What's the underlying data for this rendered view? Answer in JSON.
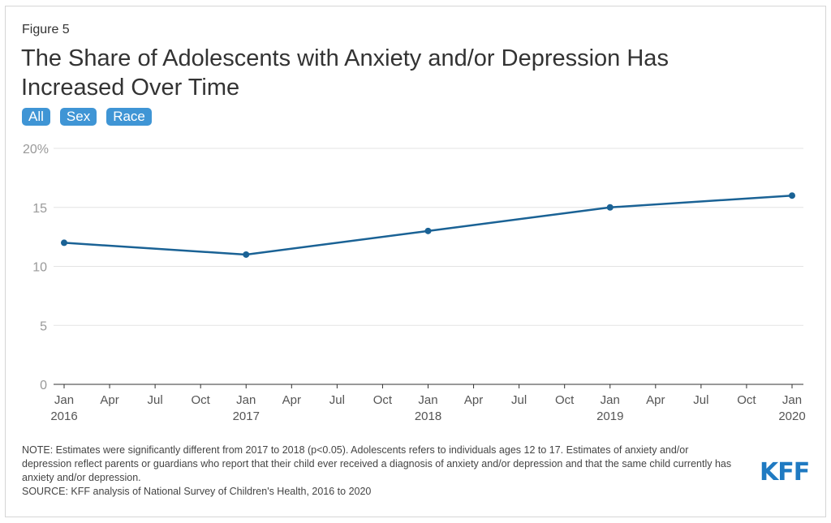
{
  "figure_label": "Figure 5",
  "title": "The Share of Adolescents with Anxiety and/or Depression Has Increased Over Time",
  "buttons": [
    "All",
    "Sex",
    "Race"
  ],
  "chart_data": {
    "type": "line",
    "title": "The Share of Adolescents with Anxiety and/or Depression Has Increased Over Time",
    "x": [
      2016,
      2017,
      2018,
      2019,
      2020
    ],
    "series": [
      {
        "name": "All",
        "values": [
          12,
          11,
          13,
          15,
          16
        ],
        "color": "#1a6295"
      }
    ],
    "ylim": [
      0,
      20
    ],
    "y_ticks": [
      "0",
      "5",
      "10",
      "15",
      "20%"
    ],
    "y_tick_values": [
      0,
      5,
      10,
      15,
      20
    ],
    "x_ticks": [
      [
        "Jan",
        "2016"
      ],
      [
        "Apr",
        ""
      ],
      [
        "Jul",
        ""
      ],
      [
        "Oct",
        ""
      ],
      [
        "Jan",
        "2017"
      ],
      [
        "Apr",
        ""
      ],
      [
        "Jul",
        ""
      ],
      [
        "Oct",
        ""
      ],
      [
        "Jan",
        "2018"
      ],
      [
        "Apr",
        ""
      ],
      [
        "Jul",
        ""
      ],
      [
        "Oct",
        ""
      ],
      [
        "Jan",
        "2019"
      ],
      [
        "Apr",
        ""
      ],
      [
        "Jul",
        ""
      ],
      [
        "Oct",
        ""
      ],
      [
        "Jan",
        "2020"
      ]
    ],
    "grid": true
  },
  "note": "NOTE: Estimates were significantly different from 2017 to 2018 (p<0.05). Adolescents refers to individuals ages 12 to 17. Estimates of anxiety and/or depression reflect parents or guardians who report that their child ever received a diagnosis of anxiety and/or depression and that the same child currently has anxiety and/or depression.",
  "source": "SOURCE: KFF analysis of National Survey of Children's Health, 2016 to 2020",
  "logo": "KFF"
}
